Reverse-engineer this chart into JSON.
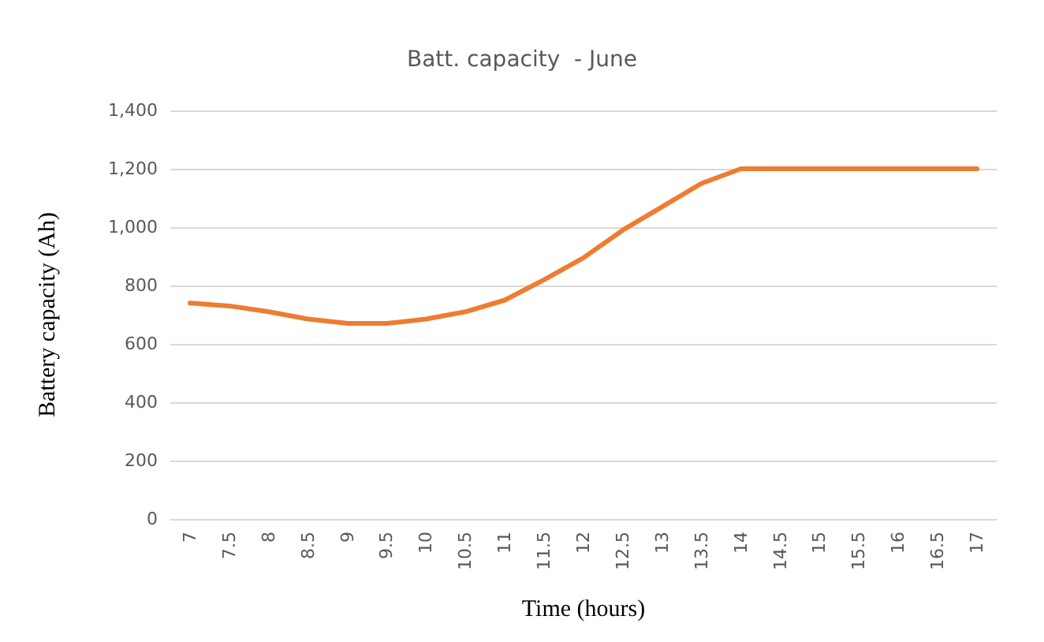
{
  "chart_data": {
    "type": "line",
    "title": "Batt. capacity  - June",
    "xlabel": "Time (hours)",
    "ylabel": "Battery capacity (Ah)",
    "categories": [
      "7",
      "7.5",
      "8",
      "8.5",
      "9",
      "9.5",
      "10",
      "10.5",
      "11",
      "11.5",
      "12",
      "12.5",
      "13",
      "13.5",
      "14",
      "14.5",
      "15",
      "15.5",
      "16",
      "16.5",
      "17"
    ],
    "series": [
      {
        "color": "#ed7d31",
        "values": [
          740,
          730,
          710,
          685,
          670,
          670,
          685,
          710,
          750,
          820,
          895,
          990,
          1070,
          1150,
          1200,
          1200,
          1200,
          1200,
          1200,
          1200,
          1200
        ]
      }
    ],
    "ylim": [
      0,
      1400
    ],
    "yticks": [
      0,
      200,
      400,
      600,
      800,
      {
        "value": 1000,
        "label": "1,000"
      },
      {
        "value": 1200,
        "label": "1,200"
      },
      {
        "value": 1400,
        "label": "1,400"
      }
    ],
    "grid": "y",
    "marker": "none",
    "line_style": "solid"
  }
}
